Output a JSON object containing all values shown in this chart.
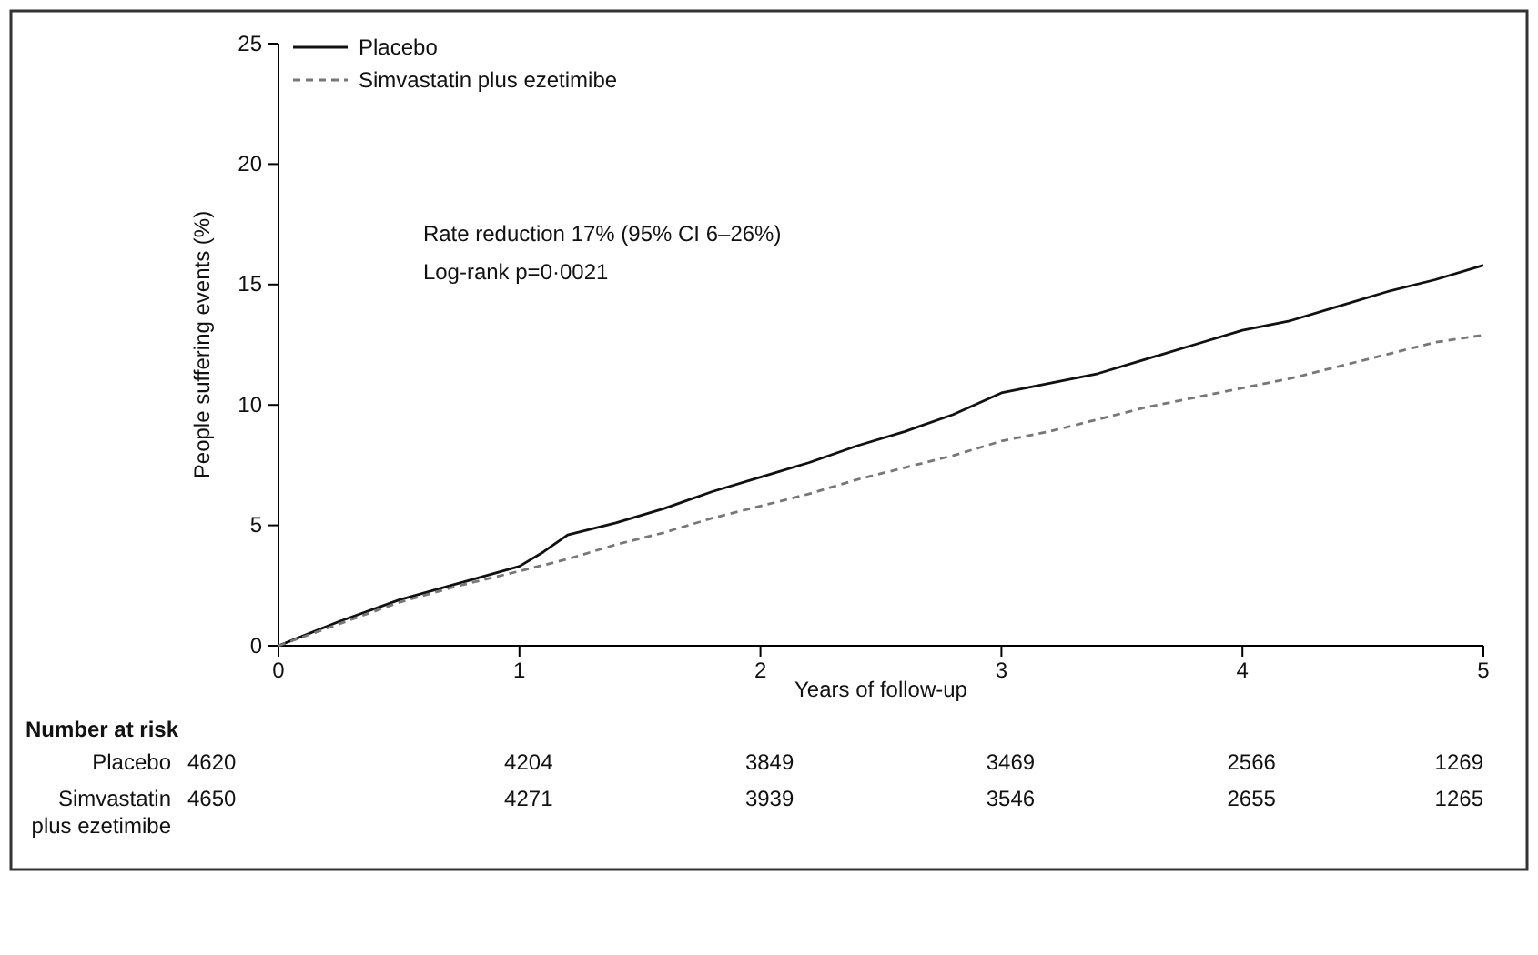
{
  "chart_data": {
    "type": "line",
    "xlabel": "Years of follow-up",
    "ylabel": "People suffering events (%)",
    "xlim": [
      0,
      5
    ],
    "xticks": [
      0,
      1,
      2,
      3,
      4,
      5
    ],
    "ylim": [
      0,
      25
    ],
    "yticks": [
      0,
      5,
      10,
      15,
      20,
      25
    ],
    "grid": false,
    "legend": "top left",
    "series": [
      {
        "name": "Placebo",
        "color": "#111111",
        "line_style": "solid",
        "x": [
          0,
          0.1,
          0.25,
          0.5,
          0.75,
          1,
          1.1,
          1.2,
          1.4,
          1.6,
          1.8,
          2,
          2.2,
          2.4,
          2.6,
          2.8,
          3,
          3.2,
          3.4,
          3.6,
          3.8,
          4,
          4.2,
          4.4,
          4.6,
          4.8,
          5
        ],
        "values": [
          0,
          0.4,
          1.0,
          1.9,
          2.6,
          3.3,
          3.9,
          4.6,
          5.1,
          5.7,
          6.4,
          7.0,
          7.6,
          8.3,
          8.9,
          9.6,
          10.5,
          10.9,
          11.3,
          11.9,
          12.5,
          13.1,
          13.5,
          14.1,
          14.7,
          15.2,
          15.8
        ]
      },
      {
        "name": "Simvastatin plus ezetimibe",
        "color": "#777777",
        "line_style": "dashed",
        "x": [
          0,
          0.25,
          0.5,
          0.75,
          1,
          1.2,
          1.4,
          1.6,
          1.8,
          2,
          2.2,
          2.4,
          2.6,
          2.8,
          3,
          3.2,
          3.4,
          3.6,
          3.8,
          4,
          4.2,
          4.4,
          4.6,
          4.8,
          5
        ],
        "values": [
          0,
          0.9,
          1.8,
          2.5,
          3.1,
          3.6,
          4.2,
          4.7,
          5.3,
          5.8,
          6.3,
          6.9,
          7.4,
          7.9,
          8.5,
          8.9,
          9.4,
          9.9,
          10.3,
          10.7,
          11.1,
          11.6,
          12.1,
          12.6,
          12.9
        ]
      }
    ],
    "annotations": [
      "Rate reduction 17% (95% CI 6–26%)",
      "Log-rank p=0·0021",
      "Number at risk",
      "Placebo",
      "4620",
      "4204",
      "3849",
      "3469",
      "2566",
      "1269",
      "Simvastatin plus ezetimibe",
      "4650",
      "4271",
      "3939",
      "3546",
      "2655",
      "1265"
    ]
  }
}
